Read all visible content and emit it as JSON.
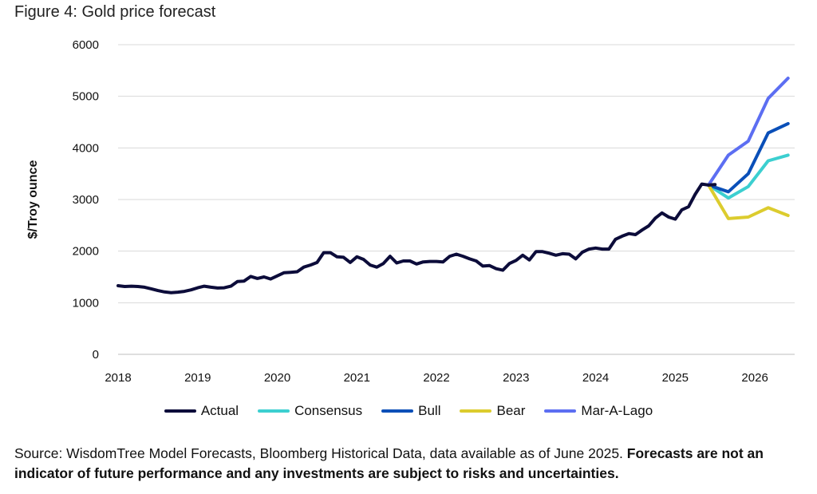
{
  "figure": {
    "title": "Figure 4: Gold price forecast",
    "source_text": "Source: WisdomTree Model Forecasts, Bloomberg Historical Data, data available as of June 2025. ",
    "source_bold": "Forecasts are not an indicator of future performance and any investments are subject to risks and uncertainties."
  },
  "chart_data": {
    "type": "line",
    "title": "Gold price forecast",
    "xlabel": "",
    "ylabel": "$/Troy ounce",
    "xlim": [
      2018,
      2026.5
    ],
    "ylim": [
      0,
      6000
    ],
    "yticks": [
      0,
      1000,
      2000,
      3000,
      4000,
      5000,
      6000
    ],
    "xticks": [
      2018,
      2019,
      2020,
      2021,
      2022,
      2023,
      2024,
      2025,
      2026
    ],
    "xtick_labels": [
      "2018",
      "2019",
      "2020",
      "2021",
      "2022",
      "2023",
      "2024",
      "2025",
      "2026"
    ],
    "grid": "horizontal",
    "legend_position": "bottom",
    "series": [
      {
        "name": "Actual",
        "color": "#0c0c3a",
        "points": [
          [
            2018.0,
            1330
          ],
          [
            2018.083,
            1315
          ],
          [
            2018.167,
            1320
          ],
          [
            2018.25,
            1315
          ],
          [
            2018.333,
            1300
          ],
          [
            2018.417,
            1270
          ],
          [
            2018.5,
            1235
          ],
          [
            2018.583,
            1210
          ],
          [
            2018.667,
            1195
          ],
          [
            2018.75,
            1205
          ],
          [
            2018.833,
            1220
          ],
          [
            2018.917,
            1250
          ],
          [
            2019.0,
            1290
          ],
          [
            2019.083,
            1320
          ],
          [
            2019.167,
            1300
          ],
          [
            2019.25,
            1285
          ],
          [
            2019.333,
            1290
          ],
          [
            2019.417,
            1320
          ],
          [
            2019.5,
            1410
          ],
          [
            2019.583,
            1420
          ],
          [
            2019.667,
            1510
          ],
          [
            2019.75,
            1470
          ],
          [
            2019.833,
            1500
          ],
          [
            2019.917,
            1460
          ],
          [
            2020.0,
            1520
          ],
          [
            2020.083,
            1580
          ],
          [
            2020.167,
            1590
          ],
          [
            2020.25,
            1600
          ],
          [
            2020.333,
            1690
          ],
          [
            2020.417,
            1730
          ],
          [
            2020.5,
            1780
          ],
          [
            2020.583,
            1970
          ],
          [
            2020.667,
            1970
          ],
          [
            2020.75,
            1890
          ],
          [
            2020.833,
            1880
          ],
          [
            2020.917,
            1780
          ],
          [
            2021.0,
            1890
          ],
          [
            2021.083,
            1840
          ],
          [
            2021.167,
            1730
          ],
          [
            2021.25,
            1690
          ],
          [
            2021.333,
            1760
          ],
          [
            2021.417,
            1900
          ],
          [
            2021.5,
            1770
          ],
          [
            2021.583,
            1810
          ],
          [
            2021.667,
            1810
          ],
          [
            2021.75,
            1750
          ],
          [
            2021.833,
            1790
          ],
          [
            2021.917,
            1800
          ],
          [
            2022.0,
            1800
          ],
          [
            2022.083,
            1790
          ],
          [
            2022.167,
            1900
          ],
          [
            2022.25,
            1940
          ],
          [
            2022.333,
            1900
          ],
          [
            2022.417,
            1850
          ],
          [
            2022.5,
            1810
          ],
          [
            2022.583,
            1710
          ],
          [
            2022.667,
            1720
          ],
          [
            2022.75,
            1660
          ],
          [
            2022.833,
            1630
          ],
          [
            2022.917,
            1760
          ],
          [
            2023.0,
            1820
          ],
          [
            2023.083,
            1920
          ],
          [
            2023.167,
            1830
          ],
          [
            2023.25,
            1990
          ],
          [
            2023.333,
            1990
          ],
          [
            2023.417,
            1960
          ],
          [
            2023.5,
            1920
          ],
          [
            2023.583,
            1950
          ],
          [
            2023.667,
            1940
          ],
          [
            2023.75,
            1850
          ],
          [
            2023.833,
            1980
          ],
          [
            2023.917,
            2040
          ],
          [
            2024.0,
            2060
          ],
          [
            2024.083,
            2040
          ],
          [
            2024.167,
            2040
          ],
          [
            2024.25,
            2230
          ],
          [
            2024.333,
            2290
          ],
          [
            2024.417,
            2340
          ],
          [
            2024.5,
            2320
          ],
          [
            2024.583,
            2410
          ],
          [
            2024.667,
            2490
          ],
          [
            2024.75,
            2640
          ],
          [
            2024.833,
            2740
          ],
          [
            2024.917,
            2660
          ],
          [
            2025.0,
            2620
          ],
          [
            2025.083,
            2800
          ],
          [
            2025.167,
            2860
          ],
          [
            2025.25,
            3100
          ],
          [
            2025.333,
            3300
          ],
          [
            2025.417,
            3280
          ],
          [
            2025.5,
            3290
          ]
        ]
      },
      {
        "name": "Consensus",
        "color": "#3ccfd0",
        "points": [
          [
            2025.417,
            3280
          ],
          [
            2025.667,
            3030
          ],
          [
            2025.917,
            3250
          ],
          [
            2026.167,
            3750
          ],
          [
            2026.417,
            3860
          ]
        ]
      },
      {
        "name": "Bull",
        "color": "#0a4fb8",
        "points": [
          [
            2025.417,
            3280
          ],
          [
            2025.667,
            3150
          ],
          [
            2025.917,
            3500
          ],
          [
            2026.167,
            4290
          ],
          [
            2026.417,
            4470
          ]
        ]
      },
      {
        "name": "Bear",
        "color": "#dccc2e",
        "points": [
          [
            2025.417,
            3280
          ],
          [
            2025.667,
            2630
          ],
          [
            2025.917,
            2660
          ],
          [
            2026.167,
            2840
          ],
          [
            2026.417,
            2690
          ]
        ]
      },
      {
        "name": "Mar-A-Lago",
        "color": "#5c6ef2",
        "points": [
          [
            2025.417,
            3280
          ],
          [
            2025.667,
            3860
          ],
          [
            2025.917,
            4130
          ],
          [
            2026.167,
            4960
          ],
          [
            2026.417,
            5350
          ]
        ]
      }
    ]
  }
}
